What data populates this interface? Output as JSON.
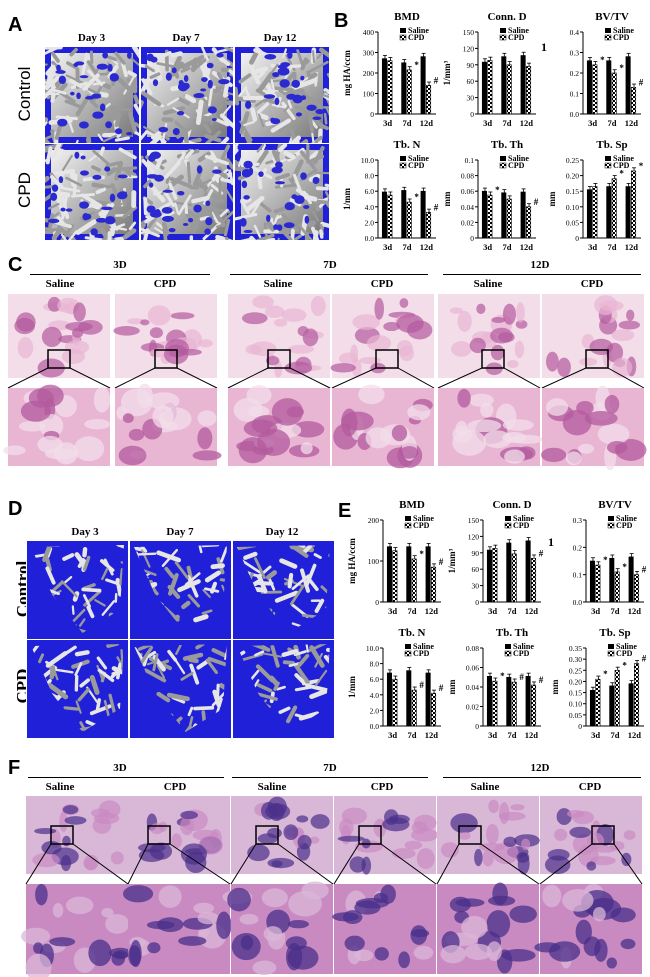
{
  "panels": {
    "A": {
      "label": "A",
      "days": [
        "Day 3",
        "Day 7",
        "Day 12"
      ],
      "rows": [
        "Control",
        "CPD"
      ]
    },
    "B": {
      "label": "B",
      "side_mark": "1"
    },
    "C": {
      "label": "C",
      "groups": [
        "3D",
        "7D",
        "12D"
      ],
      "conditions": [
        "Saline",
        "CPD"
      ]
    },
    "D": {
      "label": "D",
      "days": [
        "Day 3",
        "Day 7",
        "Day 12"
      ],
      "rows": [
        "Control",
        "CPD"
      ]
    },
    "E": {
      "label": "E",
      "side_mark": "1"
    },
    "F": {
      "label": "F",
      "groups": [
        "3D",
        "7D",
        "12D"
      ],
      "conditions": [
        "Saline",
        "CPD"
      ]
    }
  },
  "legend": {
    "saline": "Saline",
    "cpd": "CPD"
  },
  "colors": {
    "ct_background": "#2020d8",
    "saline_bar": "#000000",
    "he_pink": "#e9a8d0",
    "masson_purple": "#5a3a9a"
  },
  "chart_data": [
    {
      "id": "B-BMD",
      "type": "bar",
      "title": "BMD",
      "ylabel": "mg HA/ccm",
      "categories": [
        "3d",
        "7d",
        "12d"
      ],
      "ylim": [
        0,
        400
      ],
      "yticks": [
        "0",
        "100",
        "200",
        "300",
        "400"
      ],
      "series": [
        {
          "name": "Saline",
          "values": [
            270,
            250,
            280
          ]
        },
        {
          "name": "CPD",
          "values": [
            260,
            215,
            140
          ]
        }
      ],
      "annotations": [
        "",
        "*",
        "#"
      ]
    },
    {
      "id": "B-ConnD",
      "type": "bar",
      "title": "Conn. D",
      "ylabel": "1/mm³",
      "categories": [
        "3d",
        "7d",
        "12d"
      ],
      "ylim": [
        0,
        150
      ],
      "yticks": [
        "0",
        "30",
        "60",
        "90",
        "120",
        "150"
      ],
      "series": [
        {
          "name": "Saline",
          "values": [
            95,
            105,
            107
          ]
        },
        {
          "name": "CPD",
          "values": [
            98,
            90,
            87
          ]
        }
      ],
      "annotations": [
        "",
        "",
        ""
      ]
    },
    {
      "id": "B-BVTV",
      "type": "bar",
      "title": "BV/TV",
      "ylabel": "",
      "categories": [
        "3d",
        "7d",
        "12d"
      ],
      "ylim": [
        0,
        0.4
      ],
      "yticks": [
        "0.0",
        "0.1",
        "0.2",
        "0.3",
        "0.4"
      ],
      "series": [
        {
          "name": "Saline",
          "values": [
            0.26,
            0.26,
            0.28
          ]
        },
        {
          "name": "CPD",
          "values": [
            0.24,
            0.2,
            0.13
          ]
        }
      ],
      "annotations": [
        "*",
        "*",
        "#"
      ]
    },
    {
      "id": "B-TbN",
      "type": "bar",
      "title": "Tb. N",
      "ylabel": "1/mm",
      "categories": [
        "3d",
        "7d",
        "12d"
      ],
      "ylim": [
        0,
        10
      ],
      "yticks": [
        "0.0",
        "2.0",
        "4.0",
        "6.0",
        "8.0",
        "10.0"
      ],
      "series": [
        {
          "name": "Saline",
          "values": [
            5.9,
            6.1,
            6.0
          ]
        },
        {
          "name": "CPD",
          "values": [
            5.5,
            4.6,
            3.3
          ]
        }
      ],
      "annotations": [
        "",
        "*",
        "#"
      ]
    },
    {
      "id": "B-TbTh",
      "type": "bar",
      "title": "Tb. Th",
      "ylabel": "mm",
      "categories": [
        "3d",
        "7d",
        "12d"
      ],
      "ylim": [
        0,
        0.1
      ],
      "yticks": [
        "0",
        "0.02",
        "0.04",
        "0.06",
        "0.08",
        "0.1"
      ],
      "series": [
        {
          "name": "Saline",
          "values": [
            0.06,
            0.058,
            0.059
          ]
        },
        {
          "name": "CPD",
          "values": [
            0.055,
            0.05,
            0.04
          ]
        }
      ],
      "annotations": [
        "*",
        "",
        "#"
      ]
    },
    {
      "id": "B-TbSp",
      "type": "bar",
      "title": "Tb. Sp",
      "ylabel": "mm",
      "categories": [
        "3d",
        "7d",
        "12d"
      ],
      "ylim": [
        0,
        0.25
      ],
      "yticks": [
        "0",
        "0.05",
        "0.10",
        "0.15",
        "0.20",
        "0.25"
      ],
      "series": [
        {
          "name": "Saline",
          "values": [
            0.155,
            0.165,
            0.165
          ]
        },
        {
          "name": "CPD",
          "values": [
            0.165,
            0.19,
            0.215
          ]
        }
      ],
      "annotations": [
        "",
        "*",
        "*"
      ]
    },
    {
      "id": "E-BMD",
      "type": "bar",
      "title": "BMD",
      "ylabel": "mg HA/ccm",
      "categories": [
        "3d",
        "7d",
        "12d"
      ],
      "ylim": [
        0,
        200
      ],
      "yticks": [
        "0",
        "100",
        "200"
      ],
      "series": [
        {
          "name": "Saline",
          "values": [
            135,
            135,
            135
          ]
        },
        {
          "name": "CPD",
          "values": [
            125,
            105,
            85
          ]
        }
      ],
      "annotations": [
        "",
        "*",
        "#"
      ]
    },
    {
      "id": "E-ConnD",
      "type": "bar",
      "title": "Conn. D",
      "ylabel": "1/mm³",
      "categories": [
        "3d",
        "7d",
        "12d"
      ],
      "ylim": [
        0,
        150
      ],
      "yticks": [
        "0",
        "30",
        "60",
        "90",
        "120",
        "150"
      ],
      "series": [
        {
          "name": "Saline",
          "values": [
            95,
            108,
            112
          ]
        },
        {
          "name": "CPD",
          "values": [
            98,
            88,
            80
          ]
        }
      ],
      "annotations": [
        "",
        "",
        "#"
      ]
    },
    {
      "id": "E-BVTV",
      "type": "bar",
      "title": "BV/TV",
      "ylabel": "",
      "categories": [
        "3d",
        "7d",
        "12d"
      ],
      "ylim": [
        0,
        0.3
      ],
      "yticks": [
        "0.0",
        "0.1",
        "0.2",
        "0.3"
      ],
      "series": [
        {
          "name": "Saline",
          "values": [
            0.15,
            0.16,
            0.165
          ]
        },
        {
          "name": "CPD",
          "values": [
            0.135,
            0.11,
            0.1
          ]
        }
      ],
      "annotations": [
        "*",
        "*",
        "#"
      ]
    },
    {
      "id": "E-TbN",
      "type": "bar",
      "title": "Tb. N",
      "ylabel": "1/mm",
      "categories": [
        "3d",
        "7d",
        "12d"
      ],
      "ylim": [
        0,
        10
      ],
      "yticks": [
        "0.0",
        "2.0",
        "4.0",
        "6.0",
        "8.0",
        "10.0"
      ],
      "series": [
        {
          "name": "Saline",
          "values": [
            6.8,
            7.1,
            6.8
          ]
        },
        {
          "name": "CPD",
          "values": [
            6.0,
            4.6,
            4.2
          ]
        }
      ],
      "annotations": [
        "",
        "#",
        "#"
      ]
    },
    {
      "id": "E-TbTh",
      "type": "bar",
      "title": "Tb. Th",
      "ylabel": "mm",
      "categories": [
        "3d",
        "7d",
        "12d"
      ],
      "ylim": [
        0,
        0.08
      ],
      "yticks": [
        "0",
        "0.02",
        "0.04",
        "0.06",
        "0.08"
      ],
      "series": [
        {
          "name": "Saline",
          "values": [
            0.051,
            0.05,
            0.051
          ]
        },
        {
          "name": "CPD",
          "values": [
            0.046,
            0.045,
            0.042
          ]
        }
      ],
      "annotations": [
        "*",
        "#",
        "#"
      ]
    },
    {
      "id": "E-TbSp",
      "type": "bar",
      "title": "Tb. Sp",
      "ylabel": "mm",
      "categories": [
        "3d",
        "7d",
        "12d"
      ],
      "ylim": [
        0,
        0.35
      ],
      "yticks": [
        "0",
        "0.05",
        "0.10",
        "0.15",
        "0.20",
        "0.25",
        "0.30",
        "0.35"
      ],
      "series": [
        {
          "name": "Saline",
          "values": [
            0.16,
            0.18,
            0.19
          ]
        },
        {
          "name": "CPD",
          "values": [
            0.21,
            0.25,
            0.28
          ]
        }
      ],
      "annotations": [
        "*",
        "*",
        "#"
      ]
    }
  ]
}
